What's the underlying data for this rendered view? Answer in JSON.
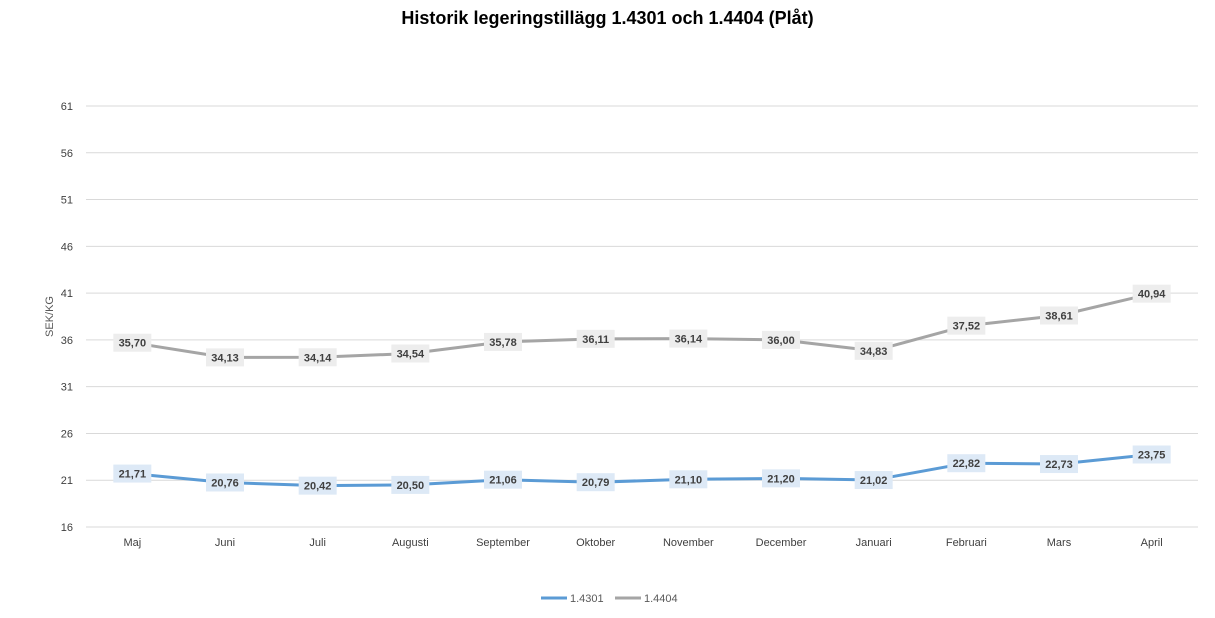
{
  "chart_data": {
    "type": "line",
    "title": "Historik legeringstillägg 1.4301 och 1.4404 (Plåt)",
    "ylabel": "SEK/KG",
    "xlabel": "",
    "categories": [
      "Maj",
      "Juni",
      "Juli",
      "Augusti",
      "September",
      "Oktober",
      "November",
      "December",
      "Januari",
      "Februari",
      "Mars",
      "April"
    ],
    "ylim": [
      16,
      61
    ],
    "yticks": [
      16,
      21,
      26,
      31,
      36,
      41,
      46,
      51,
      56,
      61
    ],
    "grid": true,
    "legend": "bottom",
    "series": [
      {
        "name": "1.4301",
        "color": "#5b9bd5",
        "label_bg": "#dde9f6",
        "values": [
          21.71,
          20.76,
          20.42,
          20.5,
          21.06,
          20.79,
          21.1,
          21.2,
          21.02,
          22.82,
          22.73,
          23.75
        ],
        "labels": [
          "21,71",
          "20,76",
          "20,42",
          "20,50",
          "21,06",
          "20,79",
          "21,10",
          "21,20",
          "21,02",
          "22,82",
          "22,73",
          "23,75"
        ]
      },
      {
        "name": "1.4404",
        "color": "#a5a5a5",
        "label_bg": "#ededed",
        "values": [
          35.7,
          34.13,
          34.14,
          34.54,
          35.78,
          36.11,
          36.14,
          36.0,
          34.83,
          37.52,
          38.61,
          40.94
        ],
        "labels": [
          "35,70",
          "34,13",
          "34,14",
          "34,54",
          "35,78",
          "36,11",
          "36,14",
          "36,00",
          "34,83",
          "37,52",
          "38,61",
          "40,94"
        ]
      }
    ]
  }
}
